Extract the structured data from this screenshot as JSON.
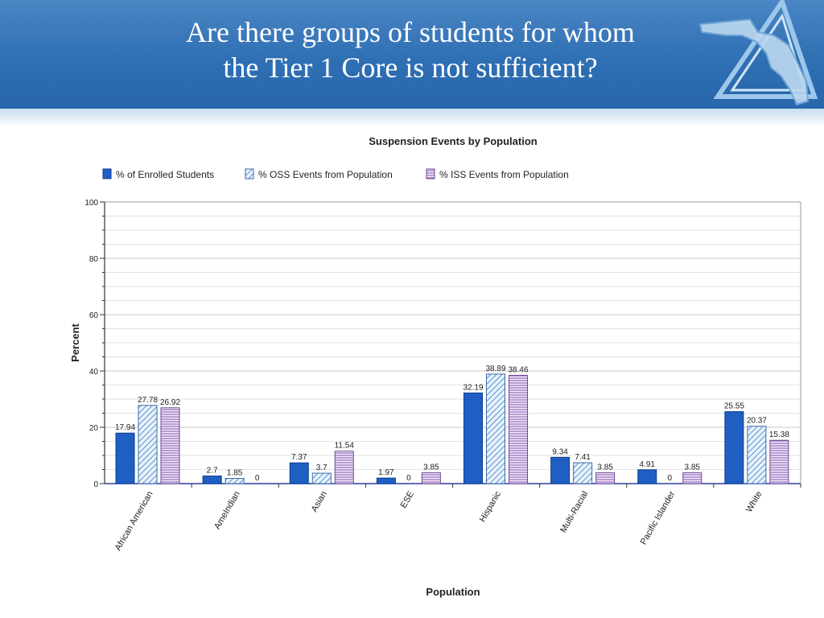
{
  "slide": {
    "title_line1": "Are there groups of students for whom",
    "title_line2": "the Tier 1 Core is not sufficient?",
    "logo_icon": "florida-triangle-logo-icon"
  },
  "colors": {
    "banner": "#2f6fb3",
    "enrolled": "#1f5fc4",
    "oss": "#7fb3e0",
    "iss": "#a882c8"
  },
  "chart_data": {
    "type": "bar",
    "title": "Suspension Events by Population",
    "xlabel": "Population",
    "ylabel": "Percent",
    "ylim": [
      0,
      100
    ],
    "yticks": [
      0,
      20,
      40,
      60,
      80,
      100
    ],
    "grid": true,
    "legend_position": "top",
    "categories": [
      "African American",
      "AmeIndian",
      "Asian",
      "ESE",
      "Hispanic",
      "Multi-Racial",
      "Pacific Islander",
      "White"
    ],
    "series": [
      {
        "name": "% of Enrolled Students",
        "values": [
          17.94,
          2.7,
          7.37,
          1.97,
          32.19,
          9.34,
          4.91,
          25.55
        ],
        "labels": [
          "17.94",
          "2.7",
          "7.37",
          "1.97",
          "32.19",
          "9.34",
          "4.91",
          "25.55"
        ]
      },
      {
        "name": "% OSS Events from Population",
        "values": [
          27.78,
          1.85,
          3.7,
          0,
          38.89,
          7.41,
          0,
          20.37
        ],
        "labels": [
          "27.78",
          "1.85",
          "3.7",
          "0",
          "38.89",
          "7.41",
          "0",
          "20.37"
        ]
      },
      {
        "name": "% ISS Events from Population",
        "values": [
          26.92,
          0,
          11.54,
          3.85,
          38.46,
          3.85,
          3.85,
          15.38
        ],
        "labels": [
          "26.92",
          "0",
          "11.54",
          "3.85",
          "38.46",
          "3.85",
          "3.85",
          "15.38"
        ]
      }
    ]
  }
}
